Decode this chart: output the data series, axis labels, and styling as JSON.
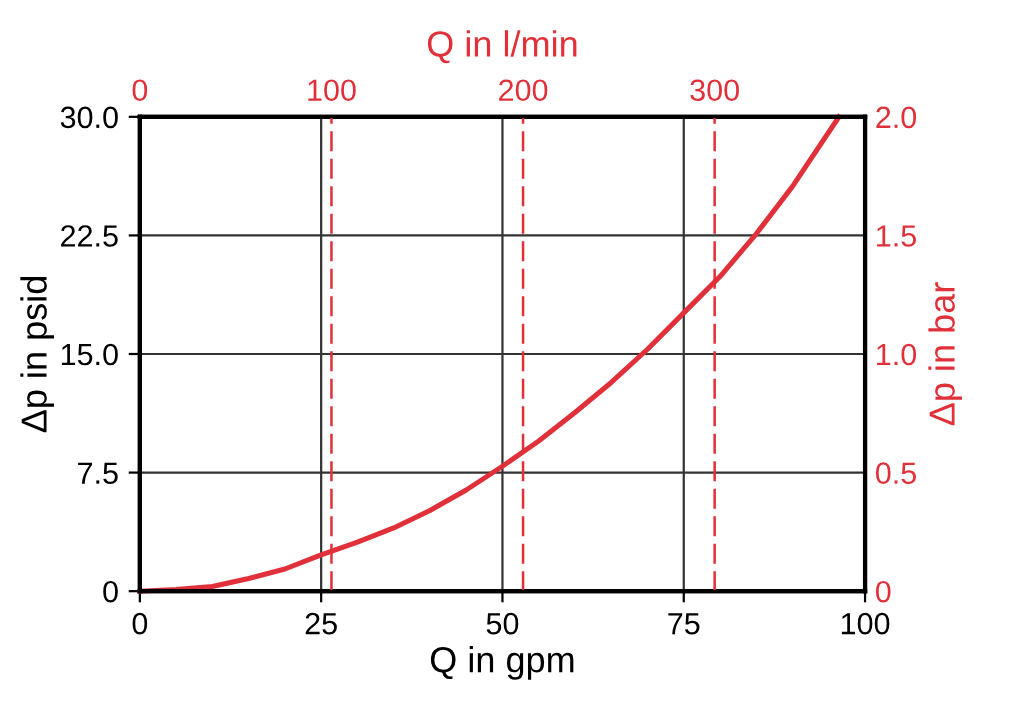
{
  "chart_data": {
    "type": "line",
    "xlabel": "Q in gpm",
    "ylabel": "Δp in psid",
    "y2label": "Δp in bar",
    "x2label": "Q in l/min",
    "xlim": [
      0,
      100
    ],
    "xticks": [
      0,
      25,
      50,
      75,
      100
    ],
    "ylim": [
      0,
      30
    ],
    "yticks": [
      0,
      7.5,
      {
        "value": 15,
        "label": "15.0"
      },
      22.5,
      {
        "value": 30,
        "label": "30.0"
      }
    ],
    "x2lim": [
      0,
      378.5
    ],
    "x2ticks": [
      0,
      100,
      200,
      300
    ],
    "y2lim": [
      0,
      2
    ],
    "y2ticks": [
      0,
      0.5,
      {
        "value": 1,
        "label": "1.0"
      },
      1.5,
      {
        "value": 2,
        "label": "2.0"
      }
    ],
    "grid": true,
    "line_style": "solid",
    "marker": "none",
    "series": [
      {
        "color": "#e0303a",
        "x": [
          0,
          5,
          10,
          15,
          20,
          25,
          30,
          35,
          40,
          45,
          50,
          55,
          60,
          65,
          70,
          75,
          80,
          85,
          90,
          96.4
        ],
        "values": [
          0,
          0.1,
          0.3,
          0.8,
          1.4,
          2.3,
          3.1,
          4.0,
          5.1,
          6.4,
          7.9,
          9.5,
          11.3,
          13.2,
          15.3,
          17.6,
          19.9,
          22.6,
          25.6,
          30
        ]
      }
    ]
  }
}
